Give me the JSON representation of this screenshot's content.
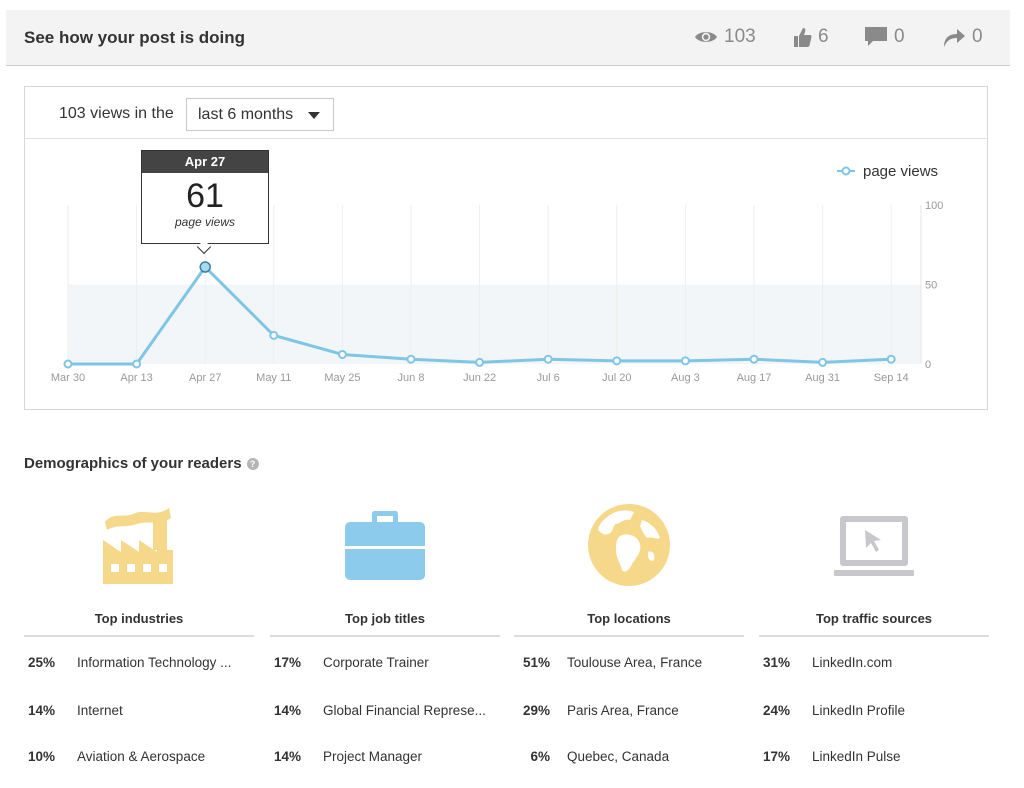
{
  "header": {
    "title": "See how your post is doing",
    "views": "103",
    "likes": "6",
    "comments": "0",
    "shares": "0"
  },
  "range": {
    "prefix": "103 views in the",
    "selected": "last 6 months"
  },
  "tooltip": {
    "date": "Apr 27",
    "value": "61",
    "unit": "page views"
  },
  "chart_data": {
    "type": "line",
    "x": [
      "Mar 30",
      "Apr 13",
      "Apr 27",
      "May 11",
      "May 25",
      "Jun 8",
      "Jun 22",
      "Jul 6",
      "Jul 20",
      "Aug 3",
      "Aug 17",
      "Aug 31",
      "Sep 14"
    ],
    "series": [
      {
        "name": "page views",
        "values": [
          0,
          0,
          61,
          18,
          6,
          3,
          1,
          3,
          2,
          2,
          3,
          1,
          3
        ]
      }
    ],
    "yticks": [
      "100",
      "50",
      "0"
    ],
    "ylim": [
      0,
      100
    ],
    "legend": "top-right",
    "color": "#7ec6e6"
  },
  "demographics": {
    "title": "Demographics of your readers",
    "help": "?",
    "columns": [
      {
        "icon": "factory-icon",
        "heading": "Top industries",
        "rows": [
          {
            "pct": "25%",
            "label": "Information Technology ..."
          },
          {
            "pct": "14%",
            "label": "Internet"
          },
          {
            "pct": "10%",
            "label": "Aviation & Aerospace"
          }
        ]
      },
      {
        "icon": "briefcase-icon",
        "heading": "Top job titles",
        "rows": [
          {
            "pct": "17%",
            "label": "Corporate Trainer"
          },
          {
            "pct": "14%",
            "label": "Global Financial Represe..."
          },
          {
            "pct": "14%",
            "label": "Project Manager"
          }
        ]
      },
      {
        "icon": "globe-icon",
        "heading": "Top locations",
        "rows": [
          {
            "pct": "51%",
            "label": "Toulouse Area, France"
          },
          {
            "pct": "29%",
            "label": "Paris Area, France"
          },
          {
            "pct": "6%",
            "label": "Quebec, Canada"
          }
        ]
      },
      {
        "icon": "laptop-icon",
        "heading": "Top traffic sources",
        "rows": [
          {
            "pct": "31%",
            "label": "LinkedIn.com"
          },
          {
            "pct": "24%",
            "label": "LinkedIn Profile"
          },
          {
            "pct": "17%",
            "label": "LinkedIn Pulse"
          }
        ]
      }
    ]
  },
  "colors": {
    "accent_blue": "#7ec6e6",
    "icon_yellow": "#f6d88a",
    "icon_blue": "#8ccbec",
    "icon_gray": "#c8c8cc"
  }
}
